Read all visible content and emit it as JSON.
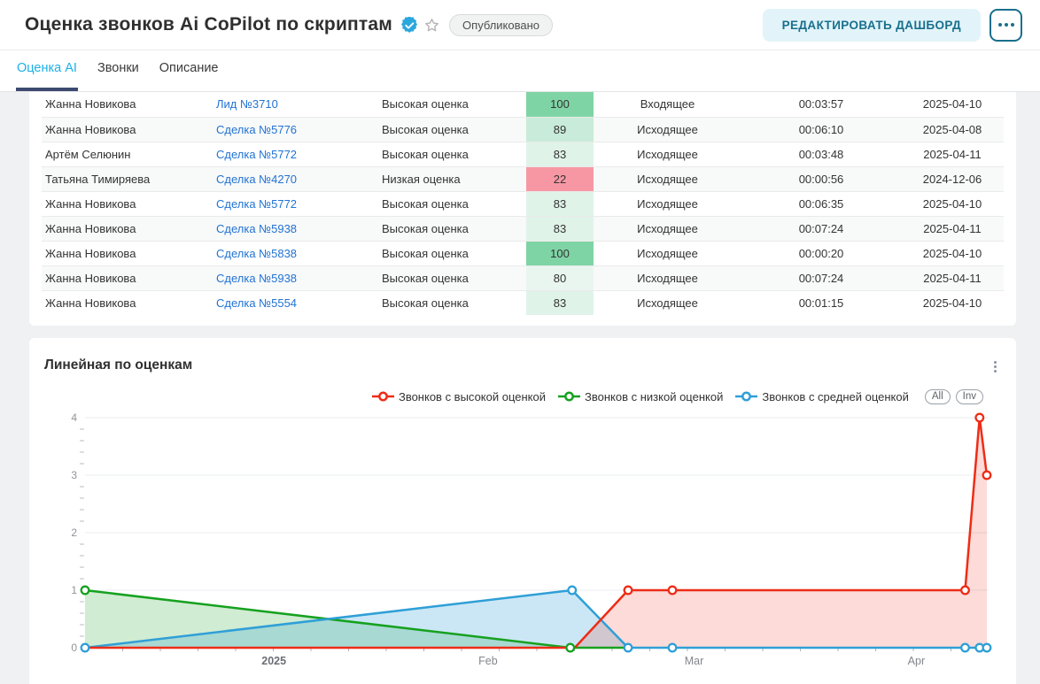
{
  "header": {
    "title": "Оценка звонков Ai CoPilot по скриптам",
    "status_badge": "Опубликовано",
    "edit_button": "РЕДАКТИРОВАТЬ ДАШБОРД",
    "accent_color": "#186f8d",
    "verified_icon_color": "#2aa7dd"
  },
  "tabs": [
    {
      "label": "Оценка AI",
      "active": true
    },
    {
      "label": "Звонки",
      "active": false
    },
    {
      "label": "Описание",
      "active": false
    }
  ],
  "table": {
    "rows": [
      {
        "name": "Жанна Новикова",
        "entity": "Лид №3710",
        "grade": "Высокая оценка",
        "score": "100",
        "score_color": "#7fd4a5",
        "direction": "Входящее",
        "duration": "00:03:57",
        "date": "2025-04-10"
      },
      {
        "name": "Жанна Новикова",
        "entity": "Сделка №5776",
        "grade": "Высокая оценка",
        "score": "89",
        "score_color": "#c8ecd9",
        "direction": "Исходящее",
        "duration": "00:06:10",
        "date": "2025-04-08"
      },
      {
        "name": "Артём Селюнин",
        "entity": "Сделка №5772",
        "grade": "Высокая оценка",
        "score": "83",
        "score_color": "#e0f3e9",
        "direction": "Исходящее",
        "duration": "00:03:48",
        "date": "2025-04-11"
      },
      {
        "name": "Татьяна Тимиряева",
        "entity": "Сделка №4270",
        "grade": "Низкая оценка",
        "score": "22",
        "score_color": "#f797a3",
        "direction": "Исходящее",
        "duration": "00:00:56",
        "date": "2024-12-06"
      },
      {
        "name": "Жанна Новикова",
        "entity": "Сделка №5772",
        "grade": "Высокая оценка",
        "score": "83",
        "score_color": "#e0f3e9",
        "direction": "Исходящее",
        "duration": "00:06:35",
        "date": "2025-04-10"
      },
      {
        "name": "Жанна Новикова",
        "entity": "Сделка №5938",
        "grade": "Высокая оценка",
        "score": "83",
        "score_color": "#e0f3e9",
        "direction": "Исходящее",
        "duration": "00:07:24",
        "date": "2025-04-11"
      },
      {
        "name": "Жанна Новикова",
        "entity": "Сделка №5838",
        "grade": "Высокая оценка",
        "score": "100",
        "score_color": "#7fd4a5",
        "direction": "Исходящее",
        "duration": "00:00:20",
        "date": "2025-04-10"
      },
      {
        "name": "Жанна Новикова",
        "entity": "Сделка №5938",
        "grade": "Высокая оценка",
        "score": "80",
        "score_color": "#e9f6f0",
        "direction": "Исходящее",
        "duration": "00:07:24",
        "date": "2025-04-11"
      },
      {
        "name": "Жанна Новикова",
        "entity": "Сделка №5554",
        "grade": "Высокая оценка",
        "score": "83",
        "score_color": "#e0f3e9",
        "direction": "Исходящее",
        "duration": "00:01:15",
        "date": "2025-04-10"
      }
    ]
  },
  "chart_card": {
    "title": "Линейная по оценкам",
    "toggles": [
      "All",
      "Inv"
    ]
  },
  "chart_data": {
    "type": "line",
    "title": "Линейная по оценкам",
    "legend_position": "top-right",
    "grid": true,
    "y_axis": {
      "min": 0,
      "max": 4,
      "ticks": [
        0,
        1,
        2,
        3,
        4
      ],
      "minor_step": 0.2
    },
    "x_axis": {
      "labels": [
        {
          "text": "2025",
          "pos": 0.209,
          "bold": true
        },
        {
          "text": "Feb",
          "pos": 0.446,
          "bold": false
        },
        {
          "text": "Mar",
          "pos": 0.674,
          "bold": false
        },
        {
          "text": "Apr",
          "pos": 0.92,
          "bold": false
        }
      ],
      "minor_tick_intervals": 24
    },
    "series": [
      {
        "name": "Звонков с низкой оценкой",
        "color": "#16a11f",
        "fill": "rgba(22,161,31,0.20)",
        "line": [
          [
            0,
            1
          ],
          [
            0.537,
            0
          ],
          [
            0.599,
            0
          ]
        ],
        "markers": [
          [
            0,
            1
          ],
          [
            0.537,
            0
          ]
        ]
      },
      {
        "name": "Звонков с средней оценкой",
        "color": "#2f9fd7",
        "fill": "rgba(47,159,215,0.25)",
        "line": [
          [
            0,
            0
          ],
          [
            0.539,
            1
          ],
          [
            0.601,
            0
          ],
          [
            0.65,
            0
          ],
          [
            0.974,
            0
          ],
          [
            0.99,
            0
          ],
          [
            0.998,
            0
          ]
        ],
        "markers": [
          [
            0,
            0
          ],
          [
            0.539,
            1
          ],
          [
            0.601,
            0
          ],
          [
            0.65,
            0
          ],
          [
            0.974,
            0
          ],
          [
            0.99,
            0
          ],
          [
            0.998,
            0
          ]
        ]
      },
      {
        "name": "Звонков с высокой оценкой",
        "color": "#ee2c16",
        "fill": "rgba(238,44,22,0.17)",
        "line": [
          [
            0,
            0
          ],
          [
            0.542,
            0
          ],
          [
            0.601,
            1
          ],
          [
            0.65,
            1
          ],
          [
            0.974,
            1
          ],
          [
            0.99,
            4
          ],
          [
            0.998,
            3
          ]
        ],
        "markers": [
          [
            0.601,
            1
          ],
          [
            0.65,
            1
          ],
          [
            0.974,
            1
          ],
          [
            0.99,
            4
          ],
          [
            0.998,
            3
          ]
        ]
      }
    ],
    "legend_order": [
      2,
      0,
      1
    ]
  }
}
